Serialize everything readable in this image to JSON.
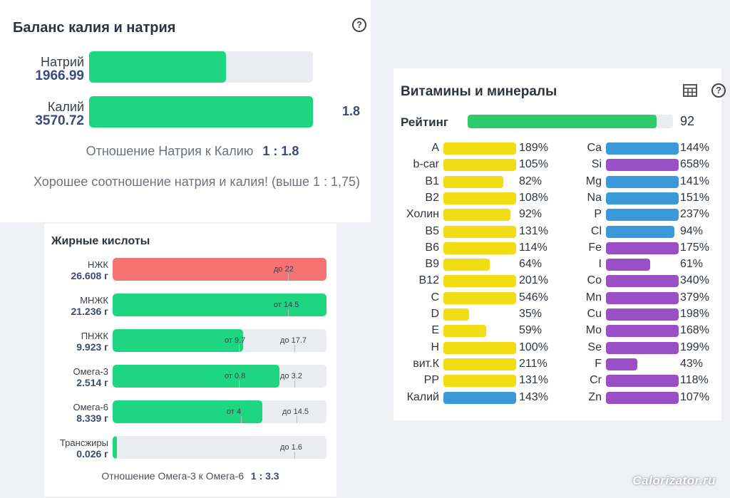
{
  "balance": {
    "title": "Баланс калия и натрия",
    "help_icon": "help-circle-icon",
    "ratio_side": "1.8",
    "sodium": {
      "label": "Натрий",
      "value": "1966.99"
    },
    "potassium": {
      "label": "Калий",
      "value": "3570.72"
    },
    "ratio_text": "Отношение Натрия к Калию",
    "ratio_value": "1 : 1.8",
    "message": "Хорошее соотношение натрия и калия! (выше 1 : 1,75)"
  },
  "fats": {
    "title": "Жирные кислоты",
    "ratio_text": "Отношение Омега-3 к Омега-6",
    "ratio_value": "1 : 3.3"
  },
  "vitamins": {
    "title": "Витамины и минералы",
    "table_icon": "table-icon",
    "help_icon": "help-circle-icon",
    "rating_label": "Рейтинг",
    "rating_value": "92"
  },
  "watermark": "Calorizator.ru",
  "colors": {
    "green": "#1ed67f",
    "red": "#f57373",
    "yellow": "#f2dc14",
    "blue": "#3a9ad9",
    "purple": "#9b4fc6",
    "rating_green": "#2fcb6b"
  },
  "chart_data": [
    {
      "type": "bar",
      "title": "Баланс калия и натрия",
      "categories": [
        "Натрий",
        "Калий"
      ],
      "values": [
        1966.99,
        3570.72
      ],
      "fill_fraction": [
        0.61,
        1.0
      ]
    },
    {
      "type": "bar",
      "title": "Жирные кислоты",
      "rows": [
        {
          "label": "НЖК",
          "value": "26.608 г",
          "fill": 1.0,
          "color": "red",
          "markers": [
            {
              "text": "до 22",
              "pos": 0.82
            }
          ]
        },
        {
          "label": "МНЖК",
          "value": "21.236 г",
          "fill": 1.0,
          "color": "green",
          "markers": [
            {
              "text": "от 14.5",
              "pos": 0.82
            }
          ]
        },
        {
          "label": "ПНЖК",
          "value": "9.923 г",
          "fill": 0.61,
          "color": "green",
          "markers": [
            {
              "text": "от 9.7",
              "pos": 0.59
            },
            {
              "text": "до 17.7",
              "pos": 0.85
            }
          ]
        },
        {
          "label": "Омега-3",
          "value": "2.514 г",
          "fill": 0.78,
          "color": "green",
          "markers": [
            {
              "text": "от 0.8",
              "pos": 0.59
            },
            {
              "text": "до 3.2",
              "pos": 0.85
            }
          ]
        },
        {
          "label": "Омега-6",
          "value": "8.339 г",
          "fill": 0.7,
          "color": "green",
          "markers": [
            {
              "text": "от 4",
              "pos": 0.6
            },
            {
              "text": "до 14.5",
              "pos": 0.86
            }
          ]
        },
        {
          "label": "Трансжиры",
          "value": "0.026 г",
          "fill": 0.02,
          "color": "green",
          "markers": [
            {
              "text": "до 1.6",
              "pos": 0.85
            }
          ]
        }
      ]
    },
    {
      "type": "bar",
      "title": "Витамины и минералы",
      "rating": {
        "value": 92,
        "max": 100
      },
      "vitamins": [
        {
          "name": "A",
          "pct": 189,
          "color": "yellow"
        },
        {
          "name": "b-car",
          "pct": 105,
          "color": "yellow"
        },
        {
          "name": "B1",
          "pct": 82,
          "color": "yellow"
        },
        {
          "name": "B2",
          "pct": 108,
          "color": "yellow"
        },
        {
          "name": "Холин",
          "pct": 92,
          "color": "yellow"
        },
        {
          "name": "B5",
          "pct": 131,
          "color": "yellow"
        },
        {
          "name": "B6",
          "pct": 114,
          "color": "yellow"
        },
        {
          "name": "B9",
          "pct": 64,
          "color": "yellow"
        },
        {
          "name": "B12",
          "pct": 201,
          "color": "yellow"
        },
        {
          "name": "C",
          "pct": 546,
          "color": "yellow"
        },
        {
          "name": "D",
          "pct": 35,
          "color": "yellow"
        },
        {
          "name": "E",
          "pct": 59,
          "color": "yellow"
        },
        {
          "name": "H",
          "pct": 100,
          "color": "yellow"
        },
        {
          "name": "вит.К",
          "pct": 211,
          "color": "yellow"
        },
        {
          "name": "PP",
          "pct": 131,
          "color": "yellow"
        },
        {
          "name": "Калий",
          "pct": 143,
          "color": "blue"
        }
      ],
      "minerals": [
        {
          "name": "Ca",
          "pct": 144,
          "color": "blue"
        },
        {
          "name": "Si",
          "pct": 658,
          "color": "purple"
        },
        {
          "name": "Mg",
          "pct": 141,
          "color": "blue"
        },
        {
          "name": "Na",
          "pct": 151,
          "color": "blue"
        },
        {
          "name": "P",
          "pct": 237,
          "color": "blue"
        },
        {
          "name": "Cl",
          "pct": 94,
          "color": "blue"
        },
        {
          "name": "Fe",
          "pct": 175,
          "color": "purple"
        },
        {
          "name": "I",
          "pct": 61,
          "color": "purple"
        },
        {
          "name": "Co",
          "pct": 340,
          "color": "purple"
        },
        {
          "name": "Mn",
          "pct": 379,
          "color": "purple"
        },
        {
          "name": "Cu",
          "pct": 198,
          "color": "purple"
        },
        {
          "name": "Mo",
          "pct": 168,
          "color": "purple"
        },
        {
          "name": "Se",
          "pct": 199,
          "color": "purple"
        },
        {
          "name": "F",
          "pct": 43,
          "color": "purple"
        },
        {
          "name": "Cr",
          "pct": 118,
          "color": "purple"
        },
        {
          "name": "Zn",
          "pct": 107,
          "color": "purple"
        }
      ]
    }
  ]
}
